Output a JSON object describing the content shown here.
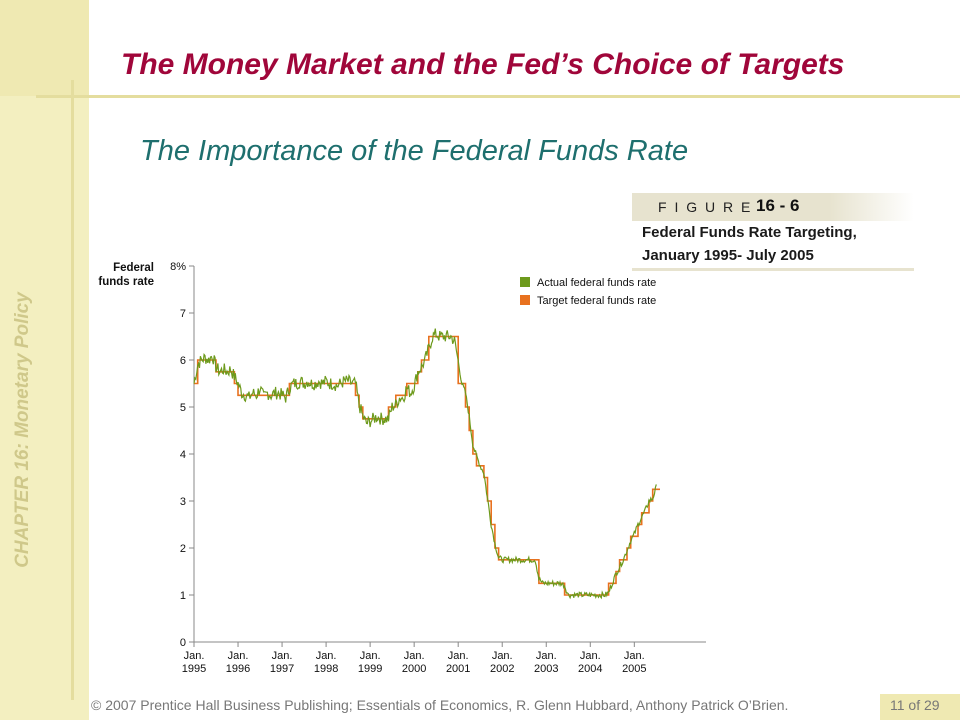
{
  "slide": {
    "title": "The Money Market and the Fed’s Choice of Targets",
    "subtitle": "The Importance of the Federal Funds Rate",
    "side_label": "CHAPTER 16:  Monetary Policy",
    "figure_word": "F I G U R E",
    "figure_number": "16 - 6",
    "caption_line1": "Federal Funds Rate Targeting,",
    "caption_line2": "January 1995- July 2005",
    "footer": "© 2007 Prentice Hall Business Publishing; Essentials of Economics, R. Glenn Hubbard, Anthony Patrick O’Brien.",
    "page": "11 of 29",
    "colors": {
      "title": "#a0063a",
      "subtitle": "#1e6f6e",
      "band": "#f3efc0"
    }
  },
  "chart_data": {
    "type": "line",
    "ylabel_line1": "Federal",
    "ylabel_line2": "funds rate",
    "ylim": [
      0,
      8
    ],
    "y_ticks": [
      "0",
      "1",
      "2",
      "3",
      "4",
      "5",
      "6",
      "7",
      "8%"
    ],
    "x_ticks": [
      {
        "line1": "Jan.",
        "line2": "1995"
      },
      {
        "line1": "Jan.",
        "line2": "1996"
      },
      {
        "line1": "Jan.",
        "line2": "1997"
      },
      {
        "line1": "Jan.",
        "line2": "1998"
      },
      {
        "line1": "Jan.",
        "line2": "1999"
      },
      {
        "line1": "Jan.",
        "line2": "2000"
      },
      {
        "line1": "Jan.",
        "line2": "2001"
      },
      {
        "line1": "Jan.",
        "line2": "2002"
      },
      {
        "line1": "Jan.",
        "line2": "2003"
      },
      {
        "line1": "Jan.",
        "line2": "2004"
      },
      {
        "line1": "Jan.",
        "line2": "2005"
      }
    ],
    "grid": false,
    "legend_position": "top-right",
    "series": [
      {
        "name": "Actual federal funds rate",
        "color": "#6d9a1c",
        "points": [
          [
            "1995-01",
            5.5
          ],
          [
            "1995-02",
            5.9
          ],
          [
            "1995-03",
            6.0
          ],
          [
            "1995-04",
            6.05
          ],
          [
            "1995-05",
            6.0
          ],
          [
            "1995-06",
            6.1
          ],
          [
            "1995-07",
            5.85
          ],
          [
            "1995-08",
            5.75
          ],
          [
            "1995-09",
            5.8
          ],
          [
            "1995-10",
            5.75
          ],
          [
            "1995-11",
            5.8
          ],
          [
            "1995-12",
            5.65
          ],
          [
            "1996-01",
            5.5
          ],
          [
            "1996-02",
            5.3
          ],
          [
            "1996-03",
            5.25
          ],
          [
            "1996-04",
            5.2
          ],
          [
            "1996-05",
            5.3
          ],
          [
            "1996-06",
            5.25
          ],
          [
            "1996-07",
            5.4
          ],
          [
            "1996-08",
            5.2
          ],
          [
            "1996-09",
            5.3
          ],
          [
            "1996-10",
            5.25
          ],
          [
            "1996-11",
            5.3
          ],
          [
            "1996-12",
            5.3
          ],
          [
            "1997-01",
            5.25
          ],
          [
            "1997-02",
            5.2
          ],
          [
            "1997-03",
            5.4
          ],
          [
            "1997-04",
            5.5
          ],
          [
            "1997-05",
            5.5
          ],
          [
            "1997-06",
            5.55
          ],
          [
            "1997-07",
            5.5
          ],
          [
            "1997-08",
            5.55
          ],
          [
            "1997-09",
            5.5
          ],
          [
            "1997-10",
            5.5
          ],
          [
            "1997-11",
            5.55
          ],
          [
            "1997-12",
            5.5
          ],
          [
            "1998-01",
            5.55
          ],
          [
            "1998-02",
            5.5
          ],
          [
            "1998-03",
            5.5
          ],
          [
            "1998-04",
            5.45
          ],
          [
            "1998-05",
            5.5
          ],
          [
            "1998-06",
            5.55
          ],
          [
            "1998-07",
            5.55
          ],
          [
            "1998-08",
            5.5
          ],
          [
            "1998-09",
            5.5
          ],
          [
            "1998-10",
            5.05
          ],
          [
            "1998-11",
            4.8
          ],
          [
            "1998-12",
            4.65
          ],
          [
            "1999-01",
            4.7
          ],
          [
            "1999-02",
            4.75
          ],
          [
            "1999-03",
            4.8
          ],
          [
            "1999-04",
            4.75
          ],
          [
            "1999-05",
            4.75
          ],
          [
            "1999-06",
            4.75
          ],
          [
            "1999-07",
            5.0
          ],
          [
            "1999-08",
            5.05
          ],
          [
            "1999-09",
            5.2
          ],
          [
            "1999-10",
            5.2
          ],
          [
            "1999-11",
            5.4
          ],
          [
            "1999-12",
            5.3
          ],
          [
            "2000-01",
            5.45
          ],
          [
            "2000-02",
            5.75
          ],
          [
            "2000-03",
            5.85
          ],
          [
            "2000-04",
            6.0
          ],
          [
            "2000-05",
            6.25
          ],
          [
            "2000-06",
            6.5
          ],
          [
            "2000-07",
            6.55
          ],
          [
            "2000-08",
            6.5
          ],
          [
            "2000-09",
            6.5
          ],
          [
            "2000-10",
            6.5
          ],
          [
            "2000-11",
            6.5
          ],
          [
            "2000-12",
            6.4
          ],
          [
            "2001-01",
            5.98
          ],
          [
            "2001-02",
            5.5
          ],
          [
            "2001-03",
            5.3
          ],
          [
            "2001-04",
            4.8
          ],
          [
            "2001-05",
            4.2
          ],
          [
            "2001-06",
            3.95
          ],
          [
            "2001-07",
            3.75
          ],
          [
            "2001-08",
            3.6
          ],
          [
            "2001-09",
            3.05
          ],
          [
            "2001-10",
            2.5
          ],
          [
            "2001-11",
            2.1
          ],
          [
            "2001-12",
            1.8
          ],
          [
            "2002-01",
            1.75
          ],
          [
            "2002-02",
            1.75
          ],
          [
            "2002-03",
            1.75
          ],
          [
            "2002-04",
            1.75
          ],
          [
            "2002-05",
            1.75
          ],
          [
            "2002-06",
            1.75
          ],
          [
            "2002-07",
            1.75
          ],
          [
            "2002-08",
            1.75
          ],
          [
            "2002-09",
            1.75
          ],
          [
            "2002-10",
            1.75
          ],
          [
            "2002-11",
            1.35
          ],
          [
            "2002-12",
            1.25
          ],
          [
            "2003-01",
            1.25
          ],
          [
            "2003-02",
            1.25
          ],
          [
            "2003-03",
            1.25
          ],
          [
            "2003-04",
            1.25
          ],
          [
            "2003-05",
            1.25
          ],
          [
            "2003-06",
            1.2
          ],
          [
            "2003-07",
            1.0
          ],
          [
            "2003-08",
            1.0
          ],
          [
            "2003-09",
            1.0
          ],
          [
            "2003-10",
            1.0
          ],
          [
            "2003-11",
            1.0
          ],
          [
            "2003-12",
            1.0
          ],
          [
            "2004-01",
            1.0
          ],
          [
            "2004-02",
            1.0
          ],
          [
            "2004-03",
            1.0
          ],
          [
            "2004-04",
            1.0
          ],
          [
            "2004-05",
            1.0
          ],
          [
            "2004-06",
            1.05
          ],
          [
            "2004-07",
            1.25
          ],
          [
            "2004-08",
            1.45
          ],
          [
            "2004-09",
            1.6
          ],
          [
            "2004-10",
            1.75
          ],
          [
            "2004-11",
            1.95
          ],
          [
            "2004-12",
            2.15
          ],
          [
            "2005-01",
            2.3
          ],
          [
            "2005-02",
            2.5
          ],
          [
            "2005-03",
            2.65
          ],
          [
            "2005-04",
            2.8
          ],
          [
            "2005-05",
            3.0
          ],
          [
            "2005-06",
            3.05
          ],
          [
            "2005-07",
            3.3
          ]
        ]
      },
      {
        "name": "Target federal funds rate",
        "color": "#e8711f",
        "points": [
          [
            "1995-01",
            5.5
          ],
          [
            "1995-02",
            6.0
          ],
          [
            "1995-07",
            5.75
          ],
          [
            "1995-12",
            5.5
          ],
          [
            "1996-01",
            5.25
          ],
          [
            "1997-03",
            5.5
          ],
          [
            "1998-09",
            5.25
          ],
          [
            "1998-10",
            5.0
          ],
          [
            "1998-11",
            4.75
          ],
          [
            "1999-06",
            5.0
          ],
          [
            "1999-08",
            5.25
          ],
          [
            "1999-11",
            5.5
          ],
          [
            "2000-02",
            5.75
          ],
          [
            "2000-03",
            6.0
          ],
          [
            "2000-05",
            6.5
          ],
          [
            "2001-01",
            5.5
          ],
          [
            "2001-03",
            5.0
          ],
          [
            "2001-04",
            4.5
          ],
          [
            "2001-05",
            4.0
          ],
          [
            "2001-06",
            3.75
          ],
          [
            "2001-08",
            3.5
          ],
          [
            "2001-09",
            3.0
          ],
          [
            "2001-10",
            2.5
          ],
          [
            "2001-11",
            2.0
          ],
          [
            "2001-12",
            1.75
          ],
          [
            "2002-11",
            1.25
          ],
          [
            "2003-06",
            1.0
          ],
          [
            "2004-06",
            1.25
          ],
          [
            "2004-08",
            1.5
          ],
          [
            "2004-09",
            1.75
          ],
          [
            "2004-11",
            2.0
          ],
          [
            "2004-12",
            2.25
          ],
          [
            "2005-02",
            2.5
          ],
          [
            "2005-03",
            2.75
          ],
          [
            "2005-05",
            3.0
          ],
          [
            "2005-06",
            3.25
          ]
        ]
      }
    ]
  }
}
